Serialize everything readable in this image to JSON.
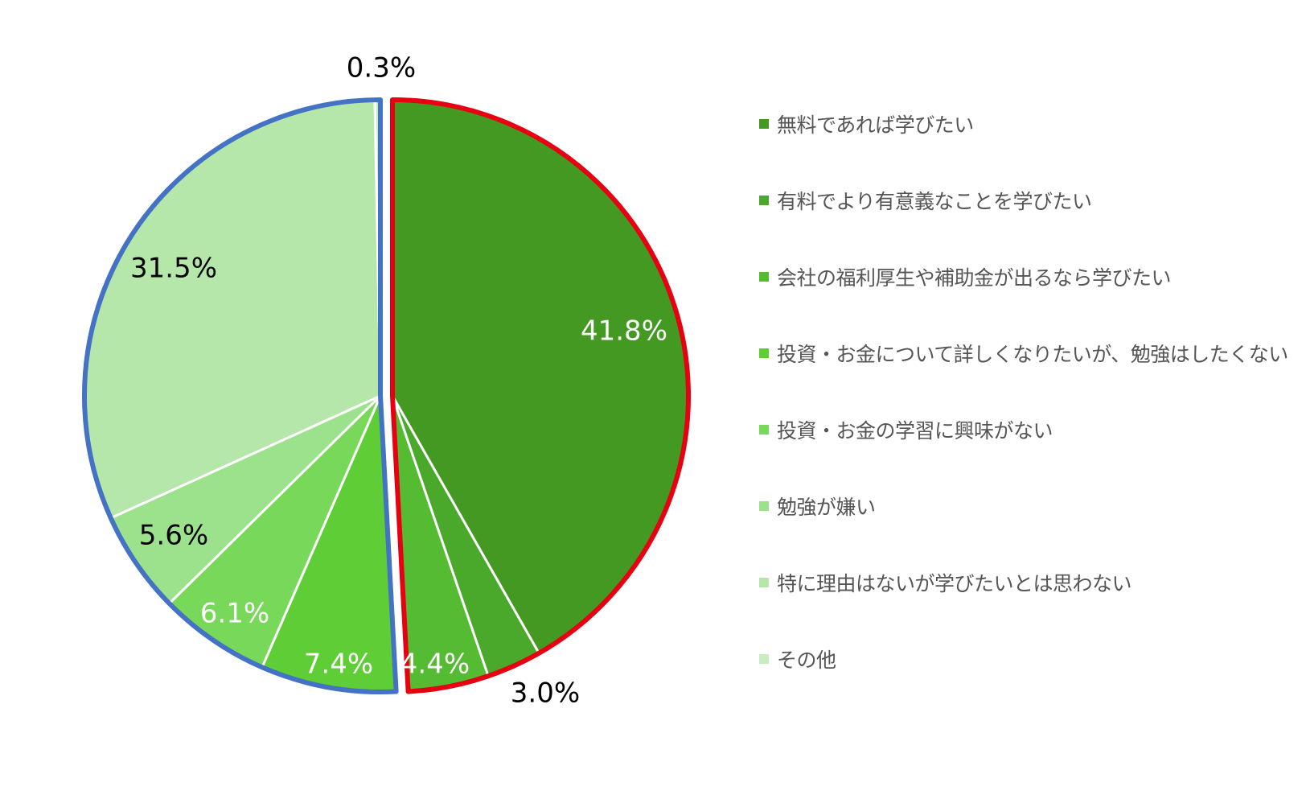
{
  "chart_data": {
    "type": "pie",
    "title": "",
    "categories": [
      "無料であれば学びたい",
      "有料でより有意義なことを学びたい",
      "会社の福利厚生や補助金が出るなら学びたい",
      "投資・お金について詳しくなりたいが、勉強はしたくない",
      "投資・お金の学習に興味がない",
      "勉強が嫌い",
      "特に理由はないが学びたいとは思わない",
      "その他"
    ],
    "values": [
      41.8,
      3.0,
      4.4,
      7.4,
      6.1,
      5.6,
      31.5,
      0.3
    ],
    "data_labels": [
      "41.8%",
      "3.0%",
      "4.4%",
      "7.4%",
      "6.1%",
      "5.6%",
      "31.5%",
      "0.3%"
    ],
    "colors": [
      "#449923",
      "#4aa82a",
      "#55bb33",
      "#5fce36",
      "#77d85a",
      "#9ce18c",
      "#b4e7a9",
      "#c9edc0"
    ],
    "label_colors": [
      "#ffffff",
      "#000000",
      "#ffffff",
      "#ffffff",
      "#ffffff",
      "#000000",
      "#000000",
      "#000000"
    ],
    "group_outline_colors": [
      "#e60012",
      "#4472c4"
    ],
    "legend_position": "right"
  }
}
